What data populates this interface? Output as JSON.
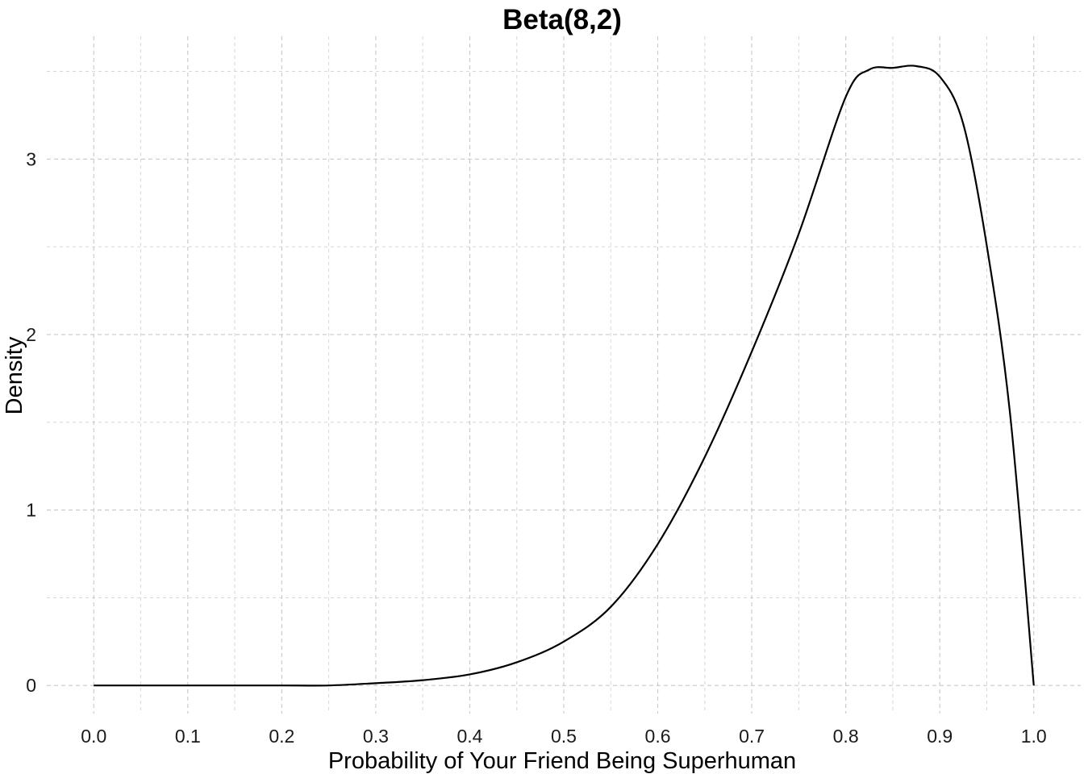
{
  "chart_data": {
    "type": "line",
    "title": "Beta(8,2)",
    "xlabel": "Probability of Your Friend Being Superhuman",
    "ylabel": "Density",
    "xlim": [
      -0.05,
      1.05
    ],
    "ylim": [
      -0.16,
      3.7
    ],
    "x_major_ticks": [
      0.0,
      0.1,
      0.2,
      0.3,
      0.4,
      0.5,
      0.6,
      0.7,
      0.8,
      0.9,
      1.0
    ],
    "x_tick_labels": [
      "0.0",
      "0.1",
      "0.2",
      "0.3",
      "0.4",
      "0.5",
      "0.6",
      "0.7",
      "0.8",
      "0.9",
      "1.0"
    ],
    "x_minor_ticks": [
      0.05,
      0.15,
      0.25,
      0.35,
      0.45,
      0.55,
      0.65,
      0.75,
      0.85,
      0.95
    ],
    "y_major_ticks": [
      0,
      1,
      2,
      3
    ],
    "y_tick_labels": [
      "0",
      "1",
      "2",
      "3"
    ],
    "y_minor_ticks": [
      0.5,
      1.5,
      2.5,
      3.5
    ],
    "grid": true,
    "grid_style": "dashed",
    "legend": "none",
    "line_color": "#000000",
    "series": [
      {
        "x": [
          0.0,
          0.05,
          0.1,
          0.15,
          0.2,
          0.25,
          0.3,
          0.35,
          0.4,
          0.45,
          0.5,
          0.55,
          0.6,
          0.65,
          0.7,
          0.75,
          0.8,
          0.825,
          0.85,
          0.875,
          0.9,
          0.925,
          0.95,
          0.975,
          1.0
        ],
        "y": [
          0.0,
          0.0,
          0.0,
          0.0,
          0.0,
          0.0,
          0.013,
          0.03,
          0.063,
          0.132,
          0.25,
          0.448,
          0.806,
          1.302,
          1.903,
          2.575,
          3.355,
          3.51,
          3.52,
          3.53,
          3.47,
          3.2,
          2.507,
          1.537,
          0.0
        ]
      }
    ]
  }
}
